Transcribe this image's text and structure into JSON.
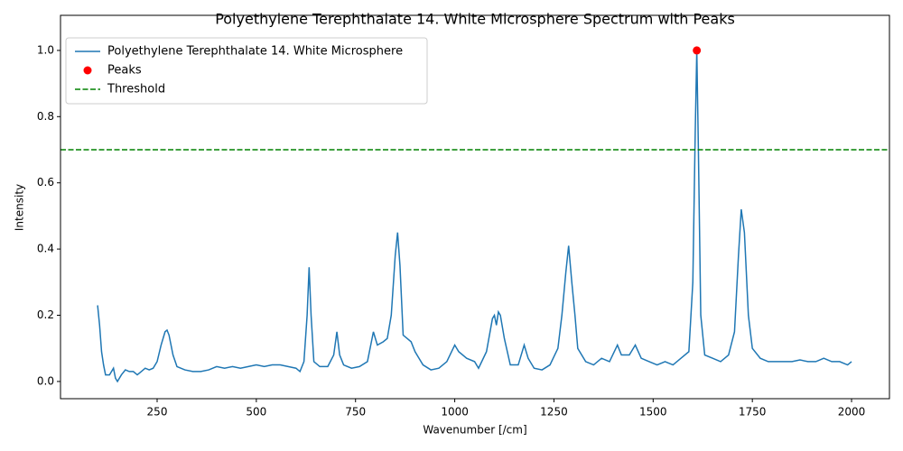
{
  "chart_data": {
    "type": "line",
    "title": "Polyethylene Terephthalate 14. White Microsphere Spectrum with Peaks",
    "xlabel": "Wavenumber [/cm]",
    "ylabel": "Intensity",
    "xlim": [
      6.5,
      2095.5
    ],
    "ylim": [
      -0.052,
      1.106
    ],
    "xticks": [
      250,
      500,
      750,
      1000,
      1250,
      1500,
      1750,
      2000
    ],
    "yticks": [
      {
        "value": 0,
        "label": "0.0"
      },
      0.2,
      0.4,
      0.6,
      0.8,
      {
        "value": 1,
        "label": "1.0"
      }
    ],
    "legend": "upper left",
    "series": [
      {
        "name": "Polyethylene Terephthalate 14. White Microsphere",
        "color": "#1f77b4",
        "x": [
          100,
          105,
          110,
          115,
          120,
          130,
          140,
          145,
          150,
          160,
          170,
          180,
          190,
          200,
          210,
          220,
          230,
          240,
          250,
          260,
          270,
          275,
          280,
          290,
          300,
          320,
          340,
          360,
          380,
          400,
          420,
          440,
          460,
          480,
          500,
          520,
          540,
          560,
          580,
          600,
          610,
          620,
          628,
          633,
          638,
          645,
          660,
          680,
          695,
          703,
          710,
          720,
          740,
          760,
          780,
          795,
          805,
          820,
          830,
          840,
          850,
          856,
          862,
          870,
          880,
          890,
          900,
          910,
          920,
          940,
          960,
          980,
          1000,
          1010,
          1030,
          1050,
          1060,
          1080,
          1095,
          1100,
          1105,
          1110,
          1115,
          1125,
          1140,
          1160,
          1175,
          1185,
          1200,
          1220,
          1240,
          1260,
          1270,
          1280,
          1287,
          1295,
          1303,
          1310,
          1330,
          1350,
          1370,
          1390,
          1410,
          1420,
          1440,
          1455,
          1470,
          1490,
          1510,
          1530,
          1550,
          1570,
          1590,
          1600,
          1606,
          1610,
          1614,
          1620,
          1630,
          1650,
          1670,
          1690,
          1705,
          1715,
          1722,
          1730,
          1740,
          1750,
          1770,
          1790,
          1810,
          1830,
          1850,
          1870,
          1890,
          1910,
          1930,
          1950,
          1970,
          1990,
          2000
        ],
        "values": [
          0.23,
          0.17,
          0.09,
          0.05,
          0.02,
          0.02,
          0.04,
          0.01,
          0.0,
          0.02,
          0.035,
          0.03,
          0.03,
          0.02,
          0.03,
          0.04,
          0.035,
          0.04,
          0.06,
          0.11,
          0.15,
          0.155,
          0.14,
          0.08,
          0.045,
          0.035,
          0.03,
          0.03,
          0.035,
          0.045,
          0.04,
          0.045,
          0.04,
          0.045,
          0.05,
          0.045,
          0.05,
          0.05,
          0.045,
          0.04,
          0.03,
          0.06,
          0.2,
          0.345,
          0.2,
          0.06,
          0.045,
          0.045,
          0.08,
          0.15,
          0.08,
          0.05,
          0.04,
          0.045,
          0.06,
          0.15,
          0.11,
          0.12,
          0.13,
          0.2,
          0.38,
          0.45,
          0.35,
          0.14,
          0.13,
          0.12,
          0.09,
          0.07,
          0.05,
          0.035,
          0.04,
          0.06,
          0.11,
          0.09,
          0.07,
          0.06,
          0.04,
          0.09,
          0.19,
          0.2,
          0.17,
          0.21,
          0.2,
          0.13,
          0.05,
          0.05,
          0.11,
          0.07,
          0.04,
          0.035,
          0.05,
          0.1,
          0.2,
          0.33,
          0.41,
          0.3,
          0.2,
          0.1,
          0.06,
          0.05,
          0.07,
          0.06,
          0.11,
          0.08,
          0.08,
          0.11,
          0.07,
          0.06,
          0.05,
          0.06,
          0.05,
          0.07,
          0.09,
          0.3,
          0.75,
          1.0,
          0.7,
          0.2,
          0.08,
          0.07,
          0.06,
          0.08,
          0.15,
          0.38,
          0.52,
          0.45,
          0.2,
          0.1,
          0.07,
          0.06,
          0.06,
          0.06,
          0.06,
          0.065,
          0.06,
          0.06,
          0.07,
          0.06,
          0.06,
          0.05,
          0.06
        ]
      }
    ],
    "peaks": {
      "name": "Peaks",
      "color": "#ff0000",
      "x": [
        1610
      ],
      "values": [
        1.0
      ]
    },
    "threshold": {
      "name": "Threshold",
      "color": "#008000",
      "value": 0.7
    }
  }
}
